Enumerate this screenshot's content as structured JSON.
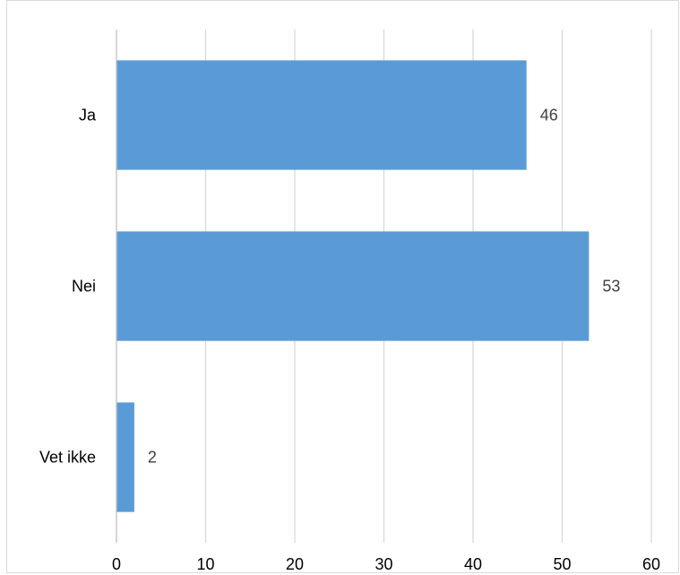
{
  "chart_data": {
    "type": "bar",
    "orientation": "horizontal",
    "categories": [
      "Ja",
      "Nei",
      "Vet ikke"
    ],
    "values": [
      46,
      53,
      2
    ],
    "data_labels": [
      "46",
      "53",
      "2"
    ],
    "xlim": [
      0,
      60
    ],
    "x_ticks": [
      0,
      10,
      20,
      30,
      40,
      50,
      60
    ],
    "x_tick_labels": [
      "0",
      "10",
      "20",
      "30",
      "40",
      "50",
      "60"
    ],
    "grid": "vertical",
    "legend": "none",
    "title": "",
    "xlabel": "",
    "ylabel": "",
    "colors": {
      "bar": "#5b9bd5",
      "grid": "#d9d9d9",
      "axis": "#bfbfbf",
      "tick_text": "#000000",
      "data_label_text": "#404040"
    }
  }
}
